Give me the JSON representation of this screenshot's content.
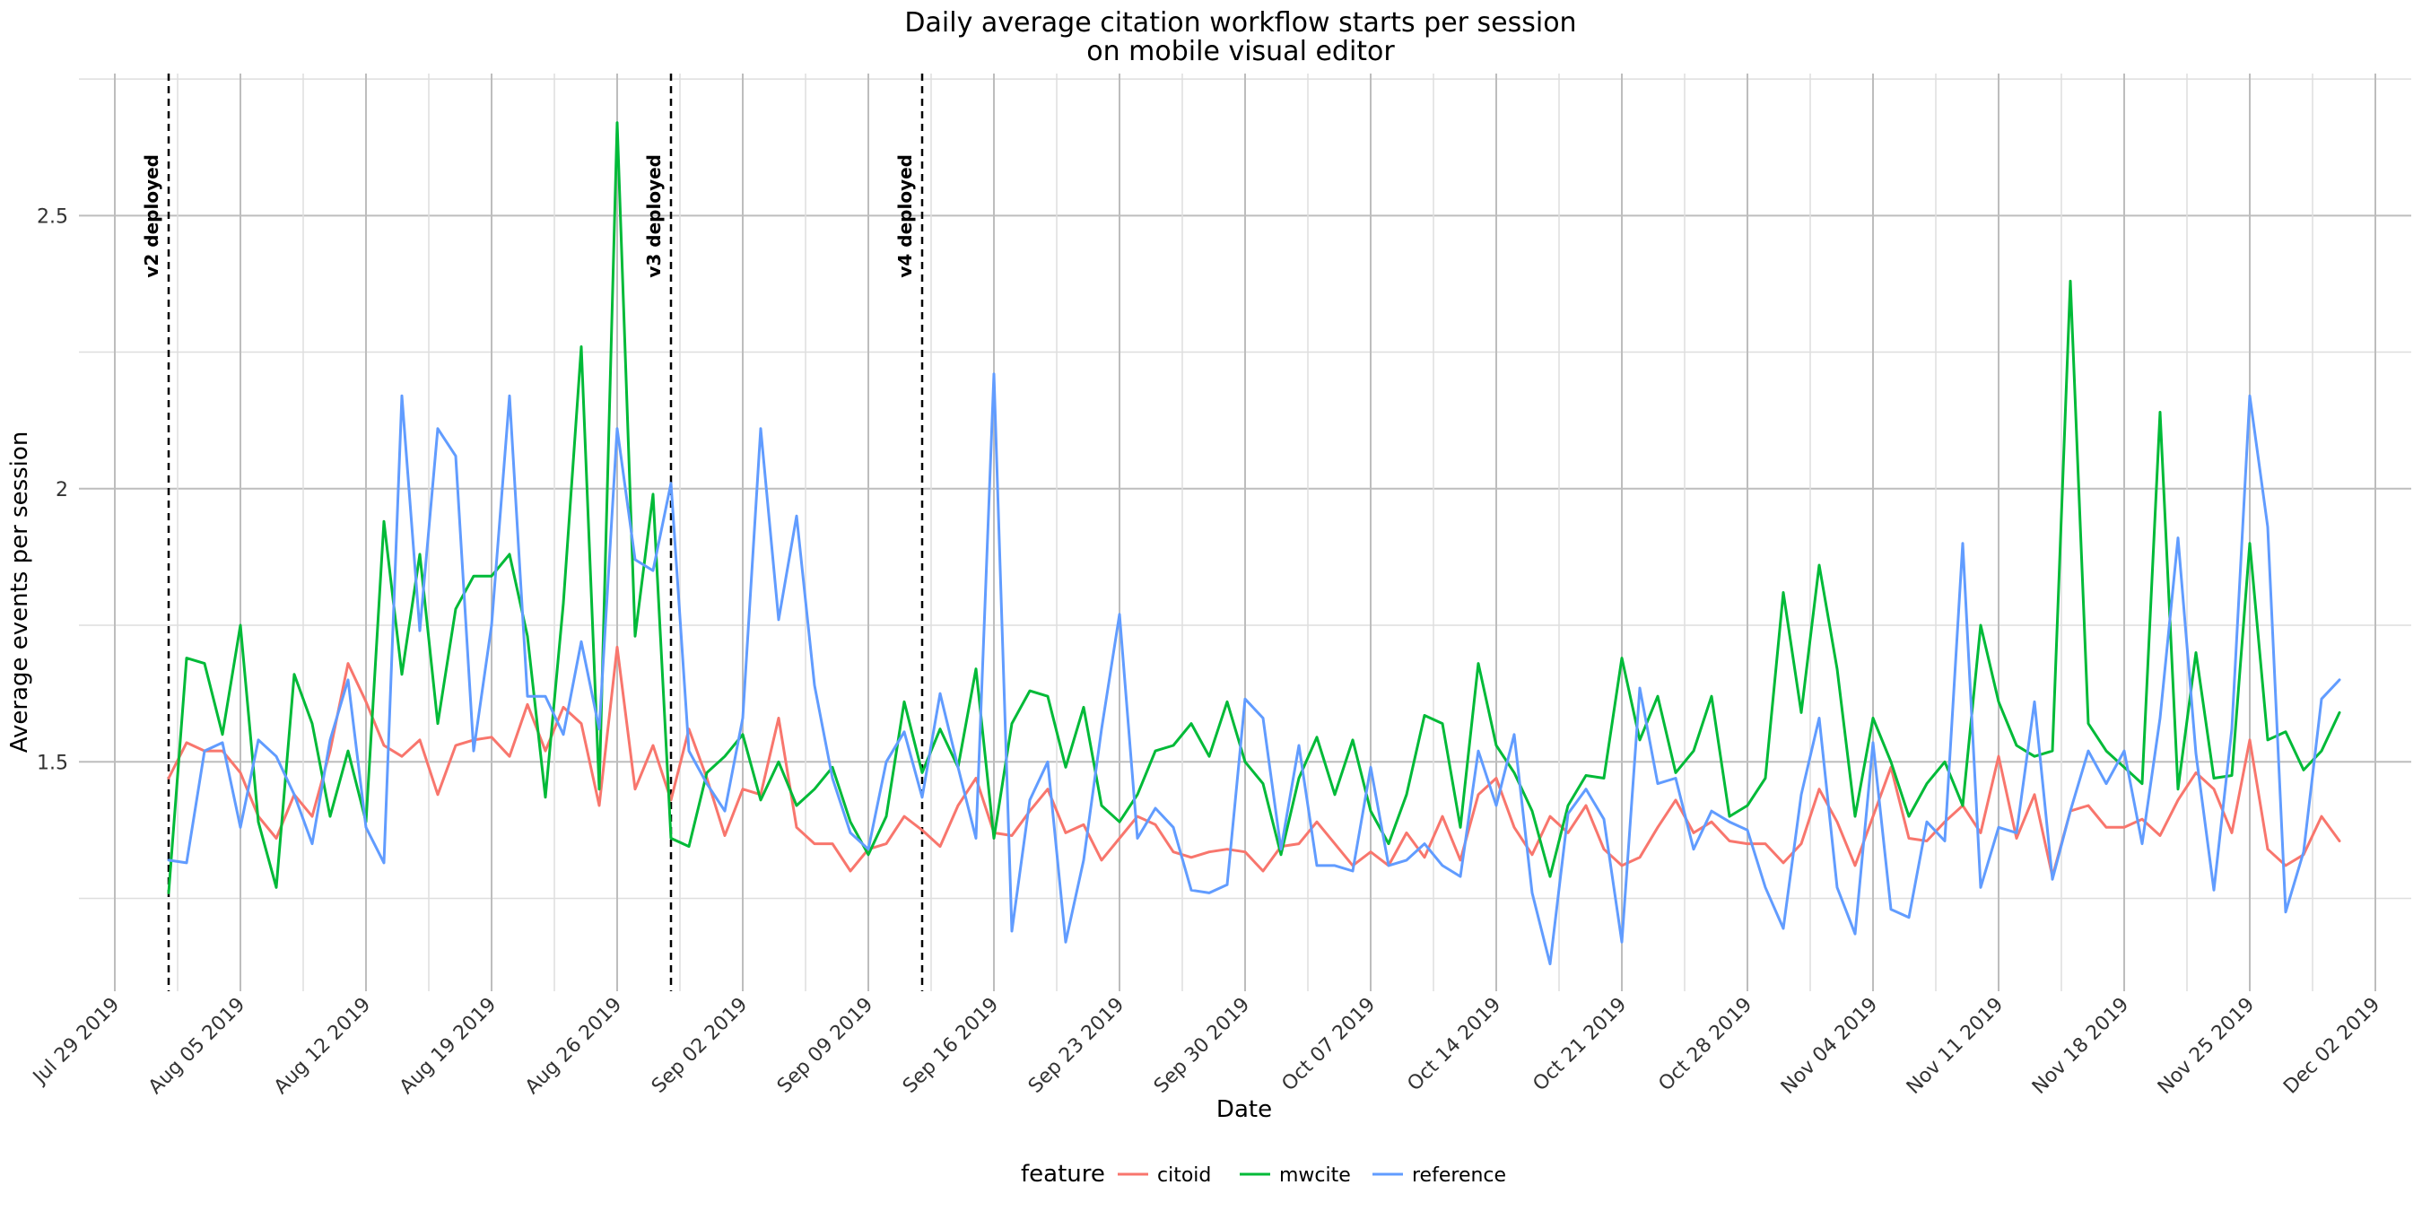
{
  "chart_data": {
    "type": "line",
    "title": "Daily average citation workflow starts per session",
    "subtitle": "on mobile visual editor",
    "xlabel": "Date",
    "ylabel": "Average events per session",
    "x_start": "2019-08-01",
    "xlim": [
      "2019-07-27",
      "2019-12-04"
    ],
    "ylim": [
      1.08,
      2.76
    ],
    "y_ticks": [
      1.5,
      2,
      2.5
    ],
    "y_tick_labels": [
      "1.5",
      "2",
      "2.5"
    ],
    "x_ticks": [
      "2019-07-29",
      "2019-08-05",
      "2019-08-12",
      "2019-08-19",
      "2019-08-26",
      "2019-09-02",
      "2019-09-09",
      "2019-09-16",
      "2019-09-23",
      "2019-09-30",
      "2019-10-07",
      "2019-10-14",
      "2019-10-21",
      "2019-10-28",
      "2019-11-04",
      "2019-11-11",
      "2019-11-18",
      "2019-11-25",
      "2019-12-02"
    ],
    "x_tick_labels": [
      "Jul 29 2019",
      "Aug 05 2019",
      "Aug 12 2019",
      "Aug 19 2019",
      "Aug 26 2019",
      "Sep 02 2019",
      "Sep 09 2019",
      "Sep 16 2019",
      "Sep 23 2019",
      "Sep 30 2019",
      "Oct 07 2019",
      "Oct 14 2019",
      "Oct 21 2019",
      "Oct 28 2019",
      "Nov 04 2019",
      "Nov 11 2019",
      "Nov 18 2019",
      "Nov 25 2019",
      "Dec 02 2019"
    ],
    "grid": true,
    "legend": {
      "title": "feature",
      "position": "bottom"
    },
    "annotations": [
      {
        "date": "2019-08-01",
        "label": "v2 deployed"
      },
      {
        "date": "2019-08-29",
        "label": "v3 deployed"
      },
      {
        "date": "2019-09-12",
        "label": "v4 deployed"
      }
    ],
    "series": [
      {
        "name": "citoid",
        "color": "#F8766D",
        "values": [
          1.47,
          1.535,
          1.52,
          1.52,
          1.48,
          1.4,
          1.36,
          1.44,
          1.4,
          1.52,
          1.68,
          1.61,
          1.53,
          1.51,
          1.54,
          1.44,
          1.53,
          1.54,
          1.545,
          1.51,
          1.605,
          1.52,
          1.6,
          1.57,
          1.42,
          1.71,
          1.45,
          1.53,
          1.43,
          1.56,
          1.47,
          1.365,
          1.45,
          1.44,
          1.58,
          1.38,
          1.35,
          1.35,
          1.3,
          1.34,
          1.35,
          1.4,
          1.375,
          1.345,
          1.42,
          1.47,
          1.37,
          1.365,
          1.41,
          1.45,
          1.37,
          1.385,
          1.32,
          1.36,
          1.4,
          1.385,
          1.335,
          1.325,
          1.335,
          1.34,
          1.335,
          1.3,
          1.345,
          1.35,
          1.39,
          1.35,
          1.31,
          1.335,
          1.31,
          1.37,
          1.325,
          1.4,
          1.32,
          1.44,
          1.47,
          1.38,
          1.33,
          1.4,
          1.37,
          1.42,
          1.34,
          1.31,
          1.325,
          1.38,
          1.43,
          1.37,
          1.39,
          1.355,
          1.35,
          1.35,
          1.315,
          1.35,
          1.45,
          1.39,
          1.31,
          1.4,
          1.49,
          1.36,
          1.355,
          1.39,
          1.42,
          1.37,
          1.51,
          1.36,
          1.44,
          1.29,
          1.41,
          1.42,
          1.38,
          1.38,
          1.395,
          1.365,
          1.43,
          1.48,
          1.45,
          1.37,
          1.54,
          1.34,
          1.31,
          1.33,
          1.4,
          1.355
        ]
      },
      {
        "name": "mwcite",
        "color": "#00BA38",
        "values": [
          1.26,
          1.69,
          1.68,
          1.55,
          1.75,
          1.39,
          1.27,
          1.66,
          1.57,
          1.4,
          1.52,
          1.39,
          1.94,
          1.66,
          1.88,
          1.57,
          1.78,
          1.84,
          1.84,
          1.88,
          1.73,
          1.435,
          1.79,
          2.26,
          1.45,
          2.67,
          1.73,
          1.99,
          1.36,
          1.345,
          1.48,
          1.51,
          1.55,
          1.43,
          1.5,
          1.42,
          1.45,
          1.49,
          1.39,
          1.33,
          1.4,
          1.61,
          1.48,
          1.56,
          1.49,
          1.67,
          1.36,
          1.57,
          1.63,
          1.62,
          1.49,
          1.6,
          1.42,
          1.39,
          1.44,
          1.52,
          1.53,
          1.57,
          1.51,
          1.61,
          1.5,
          1.46,
          1.33,
          1.47,
          1.545,
          1.44,
          1.54,
          1.41,
          1.35,
          1.44,
          1.585,
          1.57,
          1.38,
          1.68,
          1.53,
          1.48,
          1.41,
          1.29,
          1.42,
          1.475,
          1.47,
          1.69,
          1.54,
          1.62,
          1.48,
          1.52,
          1.62,
          1.4,
          1.42,
          1.47,
          1.81,
          1.59,
          1.86,
          1.67,
          1.4,
          1.58,
          1.5,
          1.4,
          1.46,
          1.5,
          1.42,
          1.75,
          1.61,
          1.53,
          1.51,
          1.52,
          2.38,
          1.57,
          1.52,
          1.49,
          1.46,
          2.14,
          1.45,
          1.7,
          1.47,
          1.475,
          1.9,
          1.54,
          1.555,
          1.485,
          1.52,
          1.59
        ]
      },
      {
        "name": "reference",
        "color": "#619CFF",
        "values": [
          1.32,
          1.315,
          1.52,
          1.535,
          1.38,
          1.54,
          1.51,
          1.44,
          1.35,
          1.54,
          1.65,
          1.38,
          1.315,
          2.17,
          1.74,
          2.11,
          2.06,
          1.52,
          1.75,
          2.17,
          1.62,
          1.62,
          1.55,
          1.72,
          1.56,
          2.11,
          1.87,
          1.85,
          2.01,
          1.52,
          1.46,
          1.41,
          1.58,
          2.11,
          1.76,
          1.95,
          1.64,
          1.47,
          1.37,
          1.34,
          1.5,
          1.555,
          1.435,
          1.625,
          1.49,
          1.36,
          2.21,
          1.19,
          1.43,
          1.5,
          1.17,
          1.32,
          1.56,
          1.77,
          1.36,
          1.415,
          1.38,
          1.265,
          1.26,
          1.275,
          1.615,
          1.58,
          1.34,
          1.53,
          1.31,
          1.31,
          1.3,
          1.49,
          1.31,
          1.32,
          1.35,
          1.31,
          1.29,
          1.52,
          1.42,
          1.55,
          1.26,
          1.13,
          1.405,
          1.45,
          1.395,
          1.17,
          1.635,
          1.46,
          1.47,
          1.34,
          1.41,
          1.39,
          1.375,
          1.27,
          1.195,
          1.44,
          1.58,
          1.27,
          1.185,
          1.535,
          1.23,
          1.215,
          1.39,
          1.355,
          1.9,
          1.27,
          1.38,
          1.37,
          1.61,
          1.285,
          1.41,
          1.52,
          1.46,
          1.52,
          1.35,
          1.58,
          1.91,
          1.515,
          1.265,
          1.56,
          2.17,
          1.93,
          1.225,
          1.335,
          1.615,
          1.65
        ]
      }
    ]
  }
}
